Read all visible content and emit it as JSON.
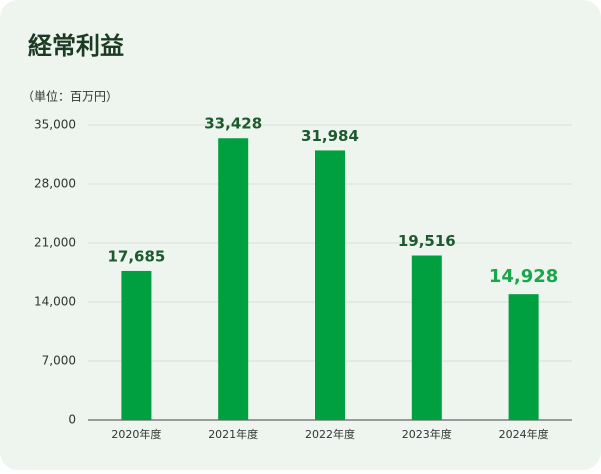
{
  "chart_data": {
    "type": "bar",
    "title": "経常利益",
    "subtitle": "（単位：百万円）",
    "categories": [
      "2020年度",
      "2021年度",
      "2022年度",
      "2023年度",
      "2024年度"
    ],
    "values": [
      17685,
      33428,
      31984,
      19516,
      14928
    ],
    "value_labels": [
      "17,685",
      "33,428",
      "31,984",
      "19,516",
      "14,928"
    ],
    "value_label_colors": [
      "#1d5a2e",
      "#1d5a2e",
      "#1d5a2e",
      "#1d5a2e",
      "#1aa64a"
    ],
    "color": "#00a040",
    "ylim": [
      0,
      35000
    ],
    "yticks": [
      0,
      {
        "value": 7000,
        "label": "7,000"
      },
      {
        "value": 14000,
        "label": "14,000"
      },
      {
        "value": 21000,
        "label": "21,000"
      },
      {
        "value": 28000,
        "label": "28,000"
      },
      {
        "value": 35000,
        "label": "35,000"
      }
    ],
    "grid": true
  }
}
